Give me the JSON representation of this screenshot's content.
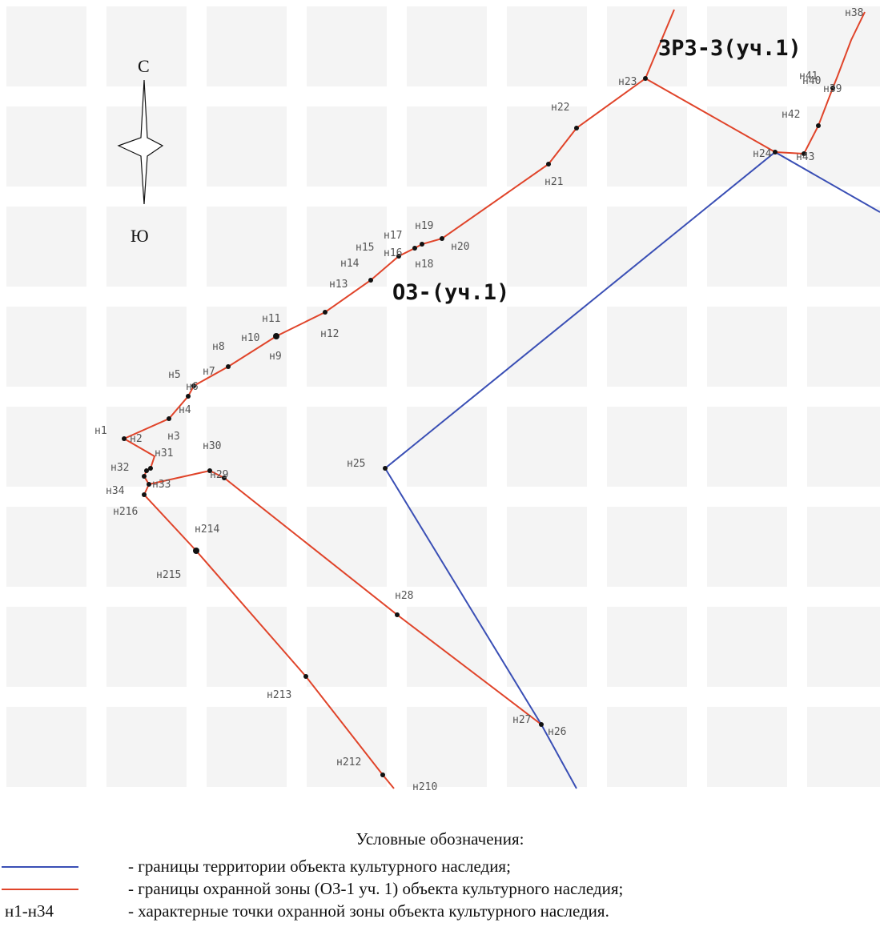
{
  "compass": {
    "north": "С",
    "south": "Ю"
  },
  "zones": [
    {
      "id": "zrz3",
      "label": "ЗРЗ-3(уч.1)"
    },
    {
      "id": "oz",
      "label": "ОЗ-(уч.1)"
    }
  ],
  "points": [
    "н1",
    "н2",
    "н3",
    "н4",
    "н5",
    "н6",
    "н7",
    "н8",
    "н9",
    "н10",
    "н11",
    "н12",
    "н13",
    "н14",
    "н15",
    "н16",
    "н17",
    "н18",
    "н19",
    "н20",
    "н21",
    "н22",
    "н23",
    "н24",
    "н25",
    "н26",
    "н27",
    "н28",
    "н29",
    "н30",
    "н31",
    "н32",
    "н33",
    "н34",
    "н39",
    "н40",
    "н41",
    "н42",
    "н43",
    "н38",
    "н210",
    "н212",
    "н213",
    "н214",
    "н215",
    "н216"
  ],
  "colors": {
    "cultural_boundary": "#3a4fb5",
    "protection_zone": "#e0442a"
  },
  "legend": {
    "title": "Условные обозначения:",
    "items": [
      {
        "symbol": "blue-line",
        "text": "- границы территории объекта культурного наследия;"
      },
      {
        "symbol": "red-line",
        "text": "- границы охранной зоны (ОЗ-1 уч. 1) объекта культурного наследия;"
      },
      {
        "symbol": "code",
        "code": "н1-н34",
        "text": "- характерные точки охранной зоны объекта культурного наследия."
      }
    ]
  }
}
